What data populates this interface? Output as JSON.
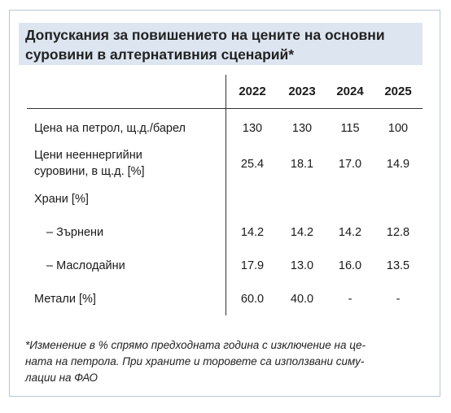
{
  "title_lines": [
    "Допускания за повишението на цените на основни",
    "суровини в алтернативния сценарий*"
  ],
  "years": [
    "2022",
    "2023",
    "2024",
    "2025"
  ],
  "rows": [
    {
      "label_lines": [
        "Цена на петрол, щ.д./барел"
      ],
      "values": [
        "130",
        "130",
        "115",
        "100"
      ]
    },
    {
      "label_lines": [
        "Цени нееннергийни",
        "суровини, в щ.д. [%]"
      ],
      "values": [
        "25.4",
        "18.1",
        "17.0",
        "14.9"
      ]
    },
    {
      "label_lines": [
        "Храни [%]"
      ],
      "values": [
        "",
        "",
        "",
        ""
      ]
    },
    {
      "label_lines": [
        "– Зърнени"
      ],
      "values": [
        "14.2",
        "14.2",
        "14.2",
        "12.8"
      ]
    },
    {
      "label_lines": [
        "– Маслодайни"
      ],
      "values": [
        "17.9",
        "13.0",
        "16.0",
        "13.5"
      ]
    },
    {
      "label_lines": [
        "Метали [%]"
      ],
      "values": [
        "60.0",
        "40.0",
        "-",
        "-"
      ]
    }
  ],
  "note_lines": [
    "*Изменение в % спрямо предходната година с изключение на це-",
    "ната на петрола.  При храните и торовете са използвани симу-",
    "лации на ФАО"
  ]
}
